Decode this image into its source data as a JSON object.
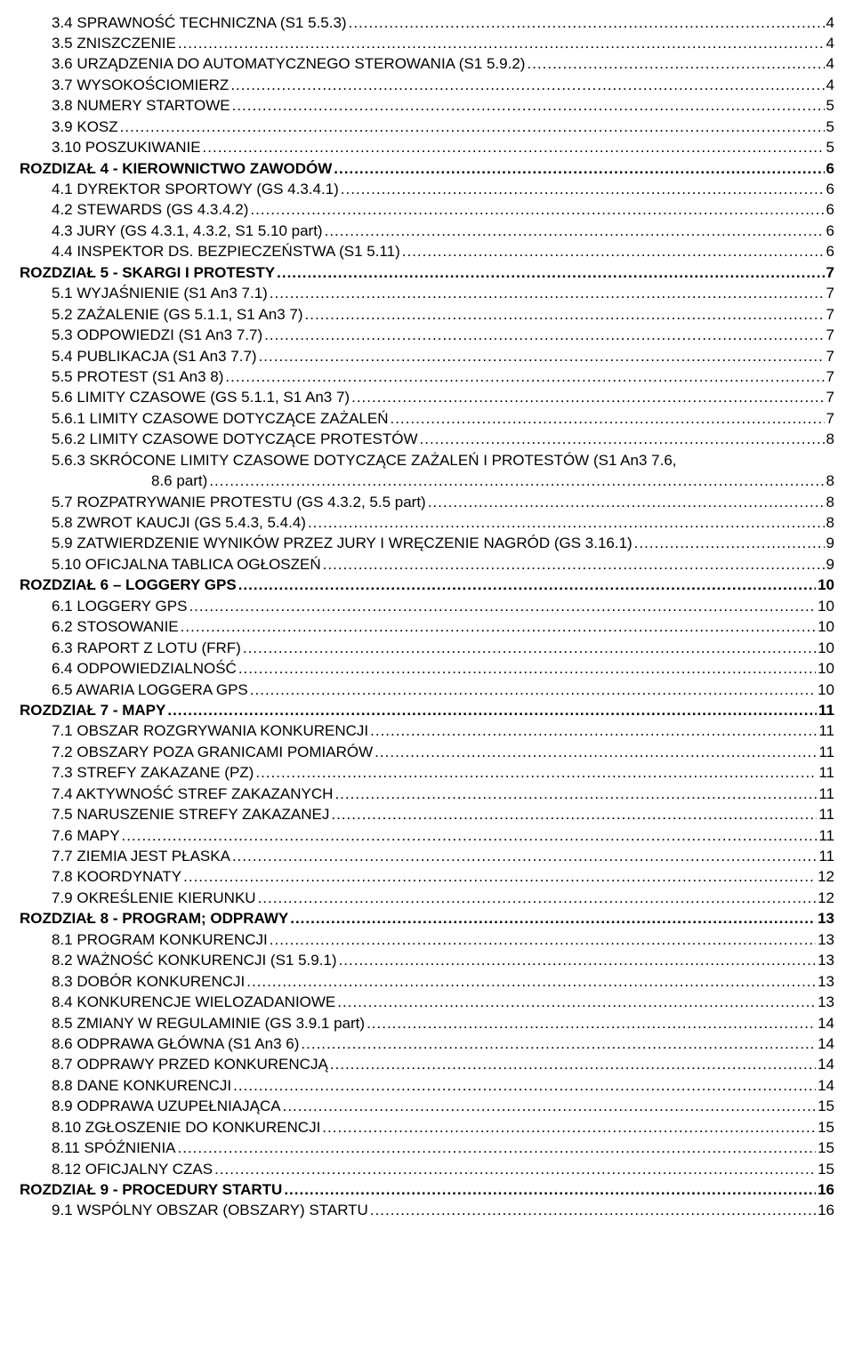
{
  "toc": [
    {
      "indent": 1,
      "bold": false,
      "label": "3.4 SPRAWNOŚĆ TECHNICZNA (S1 5.5.3)",
      "page": "4"
    },
    {
      "indent": 1,
      "bold": false,
      "label": "3.5 ZNISZCZENIE",
      "page": "4"
    },
    {
      "indent": 1,
      "bold": false,
      "label": "3.6 URZĄDZENIA DO AUTOMATYCZNEGO STEROWANIA (S1 5.9.2)",
      "page": "4"
    },
    {
      "indent": 1,
      "bold": false,
      "label": "3.7 WYSOKOŚCIOMIERZ",
      "page": "4"
    },
    {
      "indent": 1,
      "bold": false,
      "label": "3.8 NUMERY STARTOWE",
      "page": "5"
    },
    {
      "indent": 1,
      "bold": false,
      "label": "3.9 KOSZ ",
      "page": "5"
    },
    {
      "indent": 1,
      "bold": false,
      "label": "3.10 POSZUKIWANIE",
      "page": "5"
    },
    {
      "indent": 0,
      "bold": true,
      "label": "ROZDIZAŁ 4 - KIEROWNICTWO   ZAWODÓW",
      "page": "6"
    },
    {
      "indent": 1,
      "bold": false,
      "label": "4.1 DYREKTOR SPORTOWY (GS 4.3.4.1)",
      "page": "6"
    },
    {
      "indent": 1,
      "bold": false,
      "label": "4.2 STEWARDS (GS 4.3.4.2)",
      "page": "6"
    },
    {
      "indent": 1,
      "bold": false,
      "label": "4.3 JURY (GS 4.3.1, 4.3.2, S1 5.10 part)",
      "page": "6"
    },
    {
      "indent": 1,
      "bold": false,
      "label": "4.4 INSPEKTOR DS. BEZPIECZEŃSTWA (S1 5.11)",
      "page": "6"
    },
    {
      "indent": 0,
      "bold": true,
      "label": "ROZDZIAŁ 5 - SKARGI I PROTESTY",
      "page": "7"
    },
    {
      "indent": 1,
      "bold": false,
      "label": "5.1 WYJAŚNIENIE (S1 An3 7.1)",
      "page": "7"
    },
    {
      "indent": 1,
      "bold": false,
      "label": "5.2 ZAŻALENIE (GS 5.1.1, S1 An3 7)",
      "page": "7"
    },
    {
      "indent": 1,
      "bold": false,
      "label": "5.3 ODPOWIEDZI (S1 An3 7.7)",
      "page": "7"
    },
    {
      "indent": 1,
      "bold": false,
      "label": "5.4 PUBLIKACJA (S1 An3 7.7)",
      "page": "7"
    },
    {
      "indent": 1,
      "bold": false,
      "label": "5.5 PROTEST (S1 An3 8)",
      "page": "7"
    },
    {
      "indent": 1,
      "bold": false,
      "label": "5.6 LIMITY CZASOWE (GS 5.1.1, S1 An3 7)",
      "page": "7"
    },
    {
      "indent": 1,
      "bold": false,
      "label": "5.6.1 LIMITY CZASOWE DOTYCZĄCE ZAŻALEŃ",
      "page": "7"
    },
    {
      "indent": 1,
      "bold": false,
      "label": "5.6.2 LIMITY CZASOWE DOTYCZĄCE PROTESTÓW",
      "page": "8"
    },
    {
      "indent": 1,
      "bold": false,
      "wrap": true,
      "label_a": "5.6.3 SKRÓCONE LIMITY CZASOWE DOTYCZĄCE ZAŻALEŃ I PROTESTÓW (S1 An3 7.6,",
      "label_b": "8.6 part)",
      "page": "8"
    },
    {
      "indent": 1,
      "bold": false,
      "label": "5.7 ROZPATRYWANIE PROTESTU (GS 4.3.2, 5.5 part)",
      "page": "8"
    },
    {
      "indent": 1,
      "bold": false,
      "label": "5.8 ZWROT KAUCJI (GS 5.4.3, 5.4.4)",
      "page": "8"
    },
    {
      "indent": 1,
      "bold": false,
      "label": "5.9 ZATWIERDZENIE WYNIKÓW PRZEZ JURY I WRĘCZENIE NAGRÓD (GS 3.16.1)",
      "page": "9"
    },
    {
      "indent": 1,
      "bold": false,
      "label": "5.10 OFICJALNA TABLICA OGŁOSZEŃ",
      "page": "9"
    },
    {
      "indent": 0,
      "bold": true,
      "label": "ROZDZIAŁ 6 – LOGGERY GPS",
      "page": "10"
    },
    {
      "indent": 1,
      "bold": false,
      "label": "6.1 LOGGERY GPS",
      "page": "10"
    },
    {
      "indent": 1,
      "bold": false,
      "label": "6.2 STOSOWANIE",
      "page": "10"
    },
    {
      "indent": 1,
      "bold": false,
      "label": "6.3 RAPORT Z LOTU (FRF)",
      "page": "10"
    },
    {
      "indent": 1,
      "bold": false,
      "label": "6.4 ODPOWIEDZIALNOŚĆ",
      "page": "10"
    },
    {
      "indent": 1,
      "bold": false,
      "label": "6.5 AWARIA LOGGERA GPS",
      "page": "10"
    },
    {
      "indent": 0,
      "bold": true,
      "label": "ROZDZIAŁ 7 - MAPY",
      "page": "11"
    },
    {
      "indent": 1,
      "bold": false,
      "label": "7.1 OBSZAR ROZGRYWANIA KONKURENCJI",
      "page": "11"
    },
    {
      "indent": 1,
      "bold": false,
      "label": "7.2 OBSZARY POZA GRANICAMI POMIARÓW",
      "page": "11"
    },
    {
      "indent": 1,
      "bold": false,
      "label": "7.3 STREFY ZAKAZANE (PZ)",
      "page": "11"
    },
    {
      "indent": 1,
      "bold": false,
      "label": "7.4 AKTYWNOŚĆ STREF ZAKAZANYCH",
      "page": "11"
    },
    {
      "indent": 1,
      "bold": false,
      "label": "7.5 NARUSZENIE STREFY ZAKAZANEJ",
      "page": "11"
    },
    {
      "indent": 1,
      "bold": false,
      "label": "7.6 MAPY ",
      "page": "11"
    },
    {
      "indent": 1,
      "bold": false,
      "label": "7.7 ZIEMIA JEST PŁASKA",
      "page": "11"
    },
    {
      "indent": 1,
      "bold": false,
      "label": "7.8 KOORDYNATY",
      "page": "12"
    },
    {
      "indent": 1,
      "bold": false,
      "label": "7.9 OKREŚLENIE KIERUNKU",
      "page": "12"
    },
    {
      "indent": 0,
      "bold": true,
      "label": "ROZDZIAŁ 8 - PROGRAM; ODPRAWY",
      "page": "13"
    },
    {
      "indent": 1,
      "bold": false,
      "label": "8.1 PROGRAM KONKURENCJI",
      "page": "13"
    },
    {
      "indent": 1,
      "bold": false,
      "label": "8.2 WAŻNOŚĆ KONKURENCJI (S1 5.9.1)",
      "page": "13"
    },
    {
      "indent": 1,
      "bold": false,
      "label": "8.3 DOBÓR KONKURENCJI",
      "page": "13"
    },
    {
      "indent": 1,
      "bold": false,
      "label": "8.4 KONKURENCJE WIELOZADANIOWE",
      "page": "13"
    },
    {
      "indent": 1,
      "bold": false,
      "label": "8.5 ZMIANY W REGULAMINIE (GS 3.9.1 part)",
      "page": "14"
    },
    {
      "indent": 1,
      "bold": false,
      "label": "8.6 ODPRAWA GŁÓWNA (S1 An3 6) ",
      "page": "14"
    },
    {
      "indent": 1,
      "bold": false,
      "label": "8.7 ODPRAWY PRZED KONKURENCJĄ",
      "page": "14"
    },
    {
      "indent": 1,
      "bold": false,
      "label": "8.8 DANE KONKURENCJI",
      "page": "14"
    },
    {
      "indent": 1,
      "bold": false,
      "label": "8.9 ODPRAWA UZUPEŁNIAJĄCA",
      "page": "15"
    },
    {
      "indent": 1,
      "bold": false,
      "label": "8.10 ZGŁOSZENIE DO KONKURENCJI",
      "page": "15"
    },
    {
      "indent": 1,
      "bold": false,
      "label": "8.11 SPÓŹNIENIA",
      "page": "15"
    },
    {
      "indent": 1,
      "bold": false,
      "label": "8.12 OFICJALNY CZAS",
      "page": "15"
    },
    {
      "indent": 0,
      "bold": true,
      "label": "ROZDZIAŁ 9 - PROCEDURY STARTU",
      "page": "16"
    },
    {
      "indent": 1,
      "bold": false,
      "label": "9.1 WSPÓLNY OBSZAR (OBSZARY)  STARTU",
      "page": "16"
    }
  ]
}
